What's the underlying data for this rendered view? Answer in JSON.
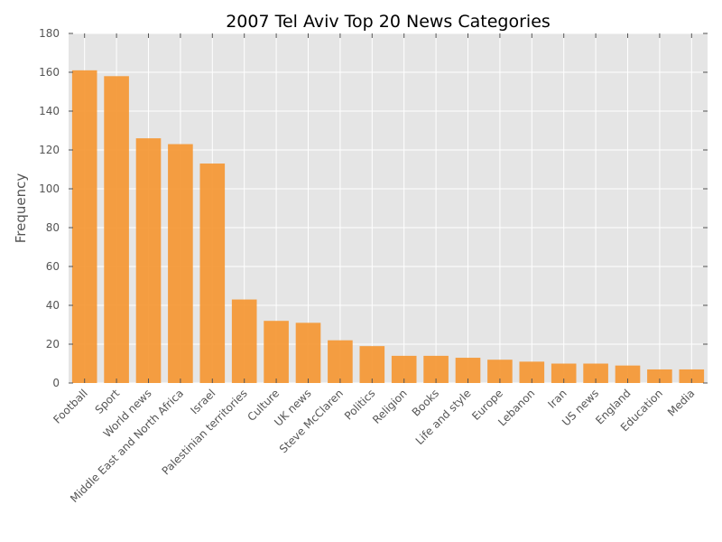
{
  "chart_data": {
    "type": "bar",
    "title": "2007 Tel Aviv Top 20 News Categories",
    "xlabel": "",
    "ylabel": "Frequency",
    "ylim": [
      0,
      180
    ],
    "yticks": [
      0,
      20,
      40,
      60,
      80,
      100,
      120,
      140,
      160,
      180
    ],
    "grid": true,
    "categories": [
      "Football",
      "Sport",
      "World news",
      "Middle East and North Africa",
      "Israel",
      "Palestinian territories",
      "Culture",
      "UK news",
      "Steve McClaren",
      "Politics",
      "Religion",
      "Books",
      "Life and style",
      "Europe",
      "Lebanon",
      "Iran",
      "US news",
      "England",
      "Education",
      "Media"
    ],
    "values": [
      161,
      158,
      126,
      123,
      113,
      43,
      32,
      31,
      22,
      19,
      14,
      14,
      13,
      12,
      11,
      10,
      10,
      9,
      7,
      7
    ],
    "bar_color": "#f5952f",
    "plot_background": "#e5e5e5",
    "grid_color": "#ffffff"
  }
}
